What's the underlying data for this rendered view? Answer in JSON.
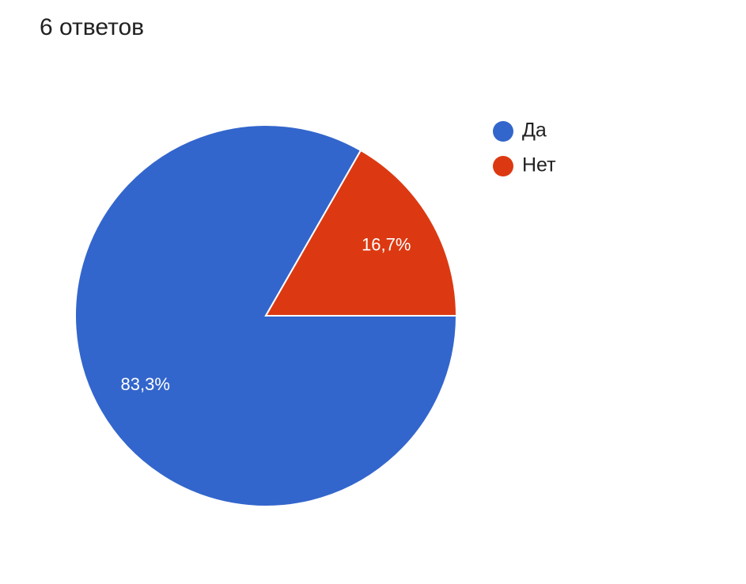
{
  "chart_data": {
    "type": "pie",
    "title": "6 ответов",
    "categories": [
      "Да",
      "Нет"
    ],
    "values": [
      83.3,
      16.7
    ],
    "value_labels": [
      "83,3%",
      "16,7%"
    ],
    "colors": [
      "#3366cc",
      "#dc3912"
    ],
    "legend": "right"
  }
}
